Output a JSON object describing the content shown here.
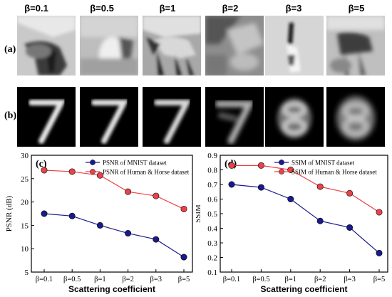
{
  "header": {
    "betas": [
      "β=0.1",
      "β=0.5",
      "β=1",
      "β=2",
      "β=3",
      "β=5"
    ]
  },
  "rows": {
    "a": "(a)",
    "b": "(b)"
  },
  "chart_data": [
    {
      "type": "line",
      "panel_label": "(c)",
      "categories": [
        "β=0.1",
        "β=0.5",
        "β=1",
        "β=2",
        "β=3",
        "β=5"
      ],
      "series": [
        {
          "name": "PSNR of MNIST dataset",
          "color": "#1a1a8c",
          "values": [
            17.5,
            17.0,
            15.0,
            13.3,
            12.0,
            8.2
          ]
        },
        {
          "name": "PSNR of Human & Horse dataset",
          "color": "#e8434a",
          "values": [
            26.8,
            26.5,
            25.7,
            22.2,
            21.3,
            18.5
          ]
        }
      ],
      "xlabel": "Scattering coefficient",
      "ylabel": "PSNR (dB)",
      "ylim": [
        5,
        30
      ],
      "yticks": [
        "5",
        "10",
        "15",
        "20",
        "25",
        "30"
      ],
      "legend": "top-center"
    },
    {
      "type": "line",
      "panel_label": "(d)",
      "categories": [
        "β=0.1",
        "β=0.5",
        "β=1",
        "β=2",
        "β=3",
        "β=5"
      ],
      "series": [
        {
          "name": "SSIM of MNIST dataset",
          "color": "#1a1a8c",
          "values": [
            0.7,
            0.68,
            0.6,
            0.45,
            0.405,
            0.23
          ]
        },
        {
          "name": "SSIM of Human & Horse dataset",
          "color": "#e8434a",
          "values": [
            0.83,
            0.83,
            0.8,
            0.685,
            0.64,
            0.51
          ]
        }
      ],
      "xlabel": "Scattering coefficient",
      "ylabel": "SSIM",
      "ylim": [
        0.1,
        0.9
      ],
      "yticks": [
        "0.1",
        "0.2",
        "0.3",
        "0.4",
        "0.5",
        "0.6",
        "0.7",
        "0.8",
        "0.9"
      ],
      "legend": "top-center"
    }
  ]
}
